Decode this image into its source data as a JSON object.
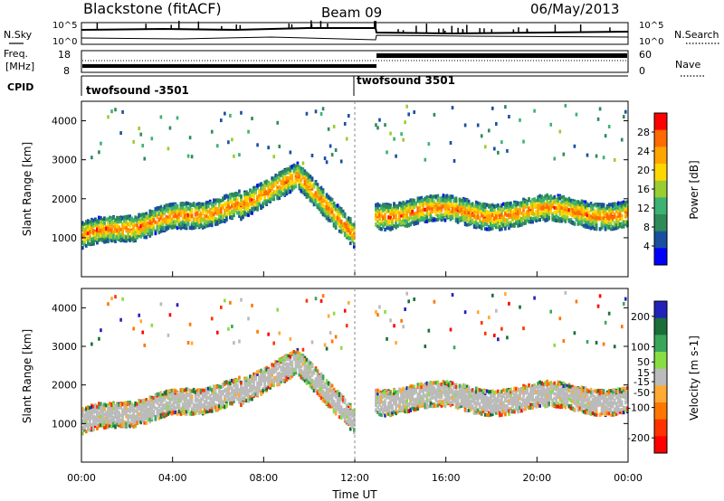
{
  "header": {
    "station": "Blackstone (fitACF)",
    "beam": "Beam 09",
    "date": "06/May/2013"
  },
  "strip_labels": {
    "nsky": "N.Sky",
    "nsearch": "N.Search",
    "freq_line1": "Freq.",
    "freq_line2": "[MHz]",
    "nave": "Nave",
    "cpid": "CPID"
  },
  "nsky_ticks": {
    "top": "10^5",
    "bottom": "10^0"
  },
  "nsearch_ticks": {
    "top": "10^5",
    "bottom": "10^0"
  },
  "freq_ticks": [
    "18",
    "8"
  ],
  "nave_ticks": [
    "60",
    "0"
  ],
  "cpid_segments": [
    "twofsound -3501",
    "twofsound 3501"
  ],
  "colors": {
    "power_scale": [
      "#0000ff",
      "#1a4fa0",
      "#2e8b57",
      "#3cb371",
      "#9acd32",
      "#ffd700",
      "#ffa500",
      "#ff6a00",
      "#ff0000"
    ],
    "velocity_scale": [
      "#2222bb",
      "#1a6e3a",
      "#3aa65a",
      "#88dd44",
      "#bbbbbb",
      "#ffaa33",
      "#ff7700",
      "#ff3300",
      "#ff0000"
    ]
  },
  "chart_data": [
    {
      "type": "heatmap",
      "name": "power",
      "xlabel": "",
      "ylabel": "Slant Range [km]",
      "x_ticks": [
        "00:00",
        "04:00",
        "08:00",
        "12:00",
        "16:00",
        "20:00",
        "00:00"
      ],
      "y_ticks": [
        "1000",
        "2000",
        "3000",
        "4000"
      ],
      "xlim": [
        0,
        24
      ],
      "ylim": [
        0,
        4500
      ],
      "colorbar": {
        "label": "Power [dB]",
        "ticks": [
          "4",
          "8",
          "12",
          "16",
          "20",
          "24",
          "28"
        ],
        "range": [
          0,
          32
        ]
      },
      "data_gap_hours": [
        12.0,
        12.9
      ]
    },
    {
      "type": "heatmap",
      "name": "velocity",
      "xlabel": "Time UT",
      "ylabel": "Slant Range [km]",
      "x_ticks": [
        "00:00",
        "04:00",
        "08:00",
        "12:00",
        "16:00",
        "20:00",
        "00:00"
      ],
      "y_ticks": [
        "1000",
        "2000",
        "3000",
        "4000"
      ],
      "xlim": [
        0,
        24
      ],
      "ylim": [
        0,
        4500
      ],
      "colorbar": {
        "label": "Velocity [m s-1]",
        "ticks": [
          "200",
          "100",
          "50",
          "15",
          "-15",
          "-50",
          "-100",
          "-200"
        ],
        "range": [
          -250,
          250
        ]
      },
      "data_gap_hours": [
        12.0,
        12.9
      ]
    }
  ]
}
